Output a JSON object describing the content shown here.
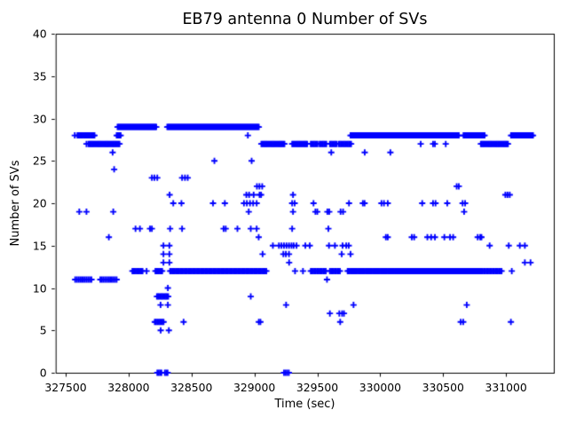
{
  "chart_data": {
    "type": "scatter",
    "title": "EB79 antenna 0 Number of SVs",
    "xlabel": "Time (sec)",
    "ylabel": "Number of SVs",
    "xlim": [
      327420,
      331380
    ],
    "ylim": [
      0,
      40
    ],
    "x_ticks": [
      327500,
      328000,
      328500,
      329000,
      329500,
      330000,
      330500,
      331000
    ],
    "y_ticks": [
      0,
      5,
      10,
      15,
      20,
      25,
      30,
      35,
      40
    ],
    "grid": false,
    "legend": null,
    "marker": {
      "symbol": "plus",
      "color": "#0000FF"
    },
    "series": {
      "name": "Number of SVs",
      "runs_note": "dense sample runs encoded as [value, t_start, t_end, t_step_sec]",
      "runs": [
        [
          28,
          327593,
          327735,
          8
        ],
        [
          27,
          327680,
          327930,
          8
        ],
        [
          28,
          327905,
          327940,
          8
        ],
        [
          29,
          327912,
          328225,
          7
        ],
        [
          29,
          328307,
          329040,
          7
        ],
        [
          27,
          329055,
          329240,
          8
        ],
        [
          27,
          329300,
          329420,
          8
        ],
        [
          27,
          329448,
          329505,
          9
        ],
        [
          27,
          329518,
          329577,
          9
        ],
        [
          27,
          329600,
          329658,
          9
        ],
        [
          27,
          329670,
          329776,
          9
        ],
        [
          28,
          329764,
          330627,
          7
        ],
        [
          28,
          330662,
          330830,
          7
        ],
        [
          27,
          330800,
          331016,
          8
        ],
        [
          28,
          331040,
          331215,
          7
        ],
        [
          12,
          328030,
          328117,
          9
        ],
        [
          12,
          328213,
          328272,
          9
        ],
        [
          12,
          328330,
          329100,
          9
        ],
        [
          12,
          329448,
          329577,
          10
        ],
        [
          12,
          329600,
          329682,
          10
        ],
        [
          12,
          329741,
          330123,
          8
        ],
        [
          12,
          330123,
          330800,
          7
        ],
        [
          12,
          330805,
          330965,
          10
        ],
        [
          11,
          327575,
          327713,
          13
        ],
        [
          11,
          327775,
          327910,
          13
        ],
        [
          9,
          328225,
          328320,
          9
        ],
        [
          6,
          328208,
          328280,
          10
        ],
        [
          0,
          328228,
          328262,
          11
        ],
        [
          0,
          328288,
          328320,
          11
        ],
        [
          0,
          329235,
          329276,
          13
        ]
      ],
      "points_note": "individual samples as [time_sec, num_svs]",
      "points": [
        [
          327572,
          28
        ],
        [
          328948,
          28
        ],
        [
          327665,
          27
        ],
        [
          330322,
          27
        ],
        [
          330420,
          27
        ],
        [
          330435,
          27
        ],
        [
          330521,
          27
        ],
        [
          327873,
          26
        ],
        [
          329611,
          26
        ],
        [
          329877,
          26
        ],
        [
          330081,
          26
        ],
        [
          328682,
          25
        ],
        [
          328978,
          25
        ],
        [
          327885,
          24
        ],
        [
          328185,
          23
        ],
        [
          328205,
          23
        ],
        [
          328228,
          23
        ],
        [
          328425,
          23
        ],
        [
          328448,
          23
        ],
        [
          328470,
          23
        ],
        [
          329020,
          22
        ],
        [
          329040,
          22
        ],
        [
          329062,
          22
        ],
        [
          330608,
          22
        ],
        [
          330625,
          22
        ],
        [
          328326,
          21
        ],
        [
          328936,
          21
        ],
        [
          328958,
          21
        ],
        [
          328994,
          21
        ],
        [
          329041,
          21
        ],
        [
          329053,
          21
        ],
        [
          329307,
          21
        ],
        [
          330995,
          21
        ],
        [
          331012,
          21
        ],
        [
          331030,
          21
        ],
        [
          328355,
          20
        ],
        [
          328420,
          20
        ],
        [
          328671,
          20
        ],
        [
          328765,
          20
        ],
        [
          328917,
          20
        ],
        [
          328940,
          20
        ],
        [
          328965,
          20
        ],
        [
          328990,
          20
        ],
        [
          329018,
          20
        ],
        [
          329300,
          20
        ],
        [
          329320,
          20
        ],
        [
          329470,
          20
        ],
        [
          329752,
          20
        ],
        [
          329862,
          20
        ],
        [
          329876,
          20
        ],
        [
          330010,
          20
        ],
        [
          330030,
          20
        ],
        [
          330060,
          20
        ],
        [
          330334,
          20
        ],
        [
          330420,
          20
        ],
        [
          330440,
          20
        ],
        [
          330533,
          20
        ],
        [
          330655,
          20
        ],
        [
          330675,
          20
        ],
        [
          327608,
          19
        ],
        [
          327665,
          19
        ],
        [
          327878,
          19
        ],
        [
          328955,
          19
        ],
        [
          329307,
          19
        ],
        [
          329485,
          19
        ],
        [
          329500,
          19
        ],
        [
          329580,
          19
        ],
        [
          329595,
          19
        ],
        [
          329685,
          19
        ],
        [
          329705,
          19
        ],
        [
          330667,
          19
        ],
        [
          328055,
          17
        ],
        [
          328090,
          17
        ],
        [
          328170,
          17
        ],
        [
          328185,
          17
        ],
        [
          328330,
          17
        ],
        [
          328425,
          17
        ],
        [
          328755,
          17
        ],
        [
          328772,
          17
        ],
        [
          328865,
          17
        ],
        [
          328971,
          17
        ],
        [
          329018,
          17
        ],
        [
          329300,
          17
        ],
        [
          329588,
          17
        ],
        [
          327843,
          16
        ],
        [
          329034,
          16
        ],
        [
          330045,
          16
        ],
        [
          330060,
          16
        ],
        [
          330251,
          16
        ],
        [
          330270,
          16
        ],
        [
          330375,
          16
        ],
        [
          330405,
          16
        ],
        [
          330435,
          16
        ],
        [
          330510,
          16
        ],
        [
          330555,
          16
        ],
        [
          330580,
          16
        ],
        [
          330775,
          16
        ],
        [
          330795,
          16
        ],
        [
          330805,
          16
        ],
        [
          328277,
          15
        ],
        [
          328324,
          15
        ],
        [
          329147,
          15
        ],
        [
          329195,
          15
        ],
        [
          329215,
          15
        ],
        [
          329235,
          15
        ],
        [
          329255,
          15
        ],
        [
          329275,
          15
        ],
        [
          329295,
          15
        ],
        [
          329312,
          15
        ],
        [
          329335,
          15
        ],
        [
          329405,
          15
        ],
        [
          329440,
          15
        ],
        [
          329593,
          15
        ],
        [
          329640,
          15
        ],
        [
          329701,
          15
        ],
        [
          329730,
          15
        ],
        [
          329750,
          15
        ],
        [
          330870,
          15
        ],
        [
          331022,
          15
        ],
        [
          331110,
          15
        ],
        [
          331150,
          15
        ],
        [
          328277,
          14
        ],
        [
          328324,
          14
        ],
        [
          329065,
          14
        ],
        [
          329230,
          14
        ],
        [
          329250,
          14
        ],
        [
          329275,
          14
        ],
        [
          329694,
          14
        ],
        [
          329764,
          14
        ],
        [
          328277,
          13
        ],
        [
          328324,
          13
        ],
        [
          329276,
          13
        ],
        [
          331150,
          13
        ],
        [
          331195,
          13
        ],
        [
          328143,
          12
        ],
        [
          329323,
          12
        ],
        [
          329386,
          12
        ],
        [
          331046,
          12
        ],
        [
          329577,
          11
        ],
        [
          328312,
          10
        ],
        [
          328971,
          9
        ],
        [
          328254,
          8
        ],
        [
          328312,
          8
        ],
        [
          329252,
          8
        ],
        [
          329788,
          8
        ],
        [
          330688,
          8
        ],
        [
          329600,
          7
        ],
        [
          329675,
          7
        ],
        [
          329697,
          7
        ],
        [
          329712,
          7
        ],
        [
          328437,
          6
        ],
        [
          329035,
          6
        ],
        [
          329048,
          6
        ],
        [
          329682,
          6
        ],
        [
          330640,
          6
        ],
        [
          330660,
          6
        ],
        [
          331039,
          6
        ],
        [
          328255,
          5
        ],
        [
          328320,
          5
        ]
      ]
    }
  }
}
